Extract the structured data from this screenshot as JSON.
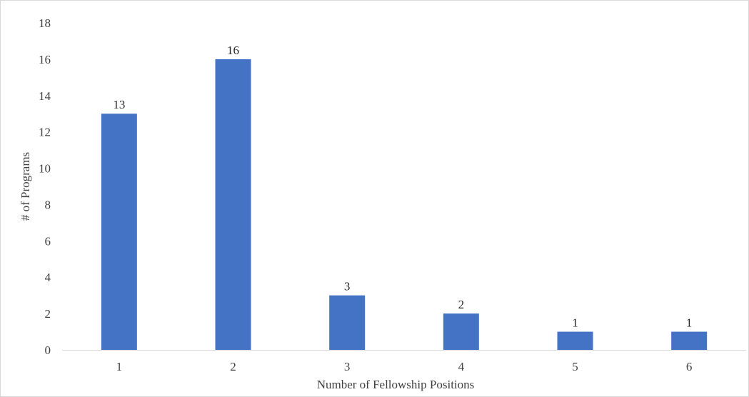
{
  "chart_data": {
    "type": "bar",
    "categories": [
      "1",
      "2",
      "3",
      "4",
      "5",
      "6"
    ],
    "values": [
      13,
      16,
      3,
      2,
      1,
      1
    ],
    "data_labels": [
      "13",
      "16",
      "3",
      "2",
      "1",
      "1"
    ],
    "title": "",
    "xlabel": "Number of Fellowship Positions",
    "ylabel": "# of Programs",
    "ylim": [
      0,
      18
    ],
    "yticks": [
      "0",
      "2",
      "4",
      "6",
      "8",
      "10",
      "12",
      "14",
      "16",
      "18"
    ],
    "grid": false,
    "legend": "none",
    "bar_color": "#4472C4",
    "axis_color": "#d9d9d9"
  }
}
